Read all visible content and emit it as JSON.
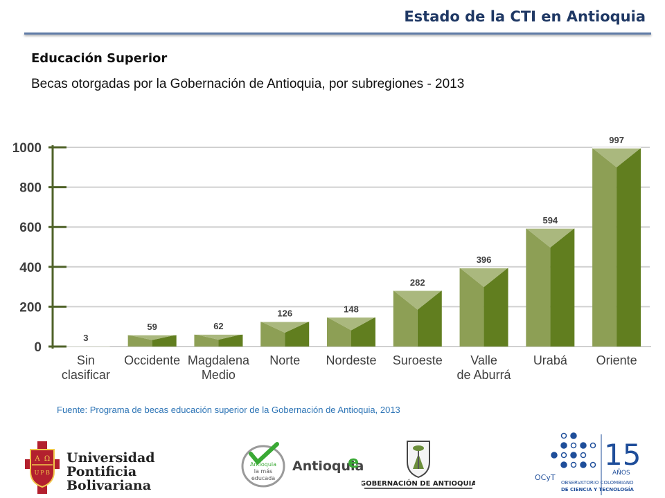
{
  "header": {
    "title": "Estado de la CTI en Antioquia",
    "subtitle": "Educación Superior",
    "caption": "Becas otorgadas por la Gobernación de Antioquia, por subregiones - 2013"
  },
  "chart_data": {
    "type": "bar",
    "title": "",
    "xlabel": "",
    "ylabel": "",
    "categories": [
      [
        "Sin",
        "clasificar"
      ],
      [
        "Occidente"
      ],
      [
        "Magdalena",
        "Medio"
      ],
      [
        "Norte"
      ],
      [
        "Nordeste"
      ],
      [
        "Suroeste"
      ],
      [
        "Valle",
        "de Aburrá"
      ],
      [
        "Urabá"
      ],
      [
        "Oriente"
      ]
    ],
    "values": [
      3,
      59,
      62,
      126,
      148,
      282,
      396,
      594,
      997
    ],
    "ylim": [
      0,
      1000
    ],
    "yticks": [
      0,
      200,
      400,
      600,
      800,
      1000
    ],
    "grid": true,
    "legend": "none",
    "colors": {
      "bar_front_left": "#8d9f55",
      "bar_front_right": "#617e1f",
      "bar_top": "#aab87e",
      "axis": "#4f6228",
      "grid": "#d0d0d0",
      "text": "#3f3f3f"
    }
  },
  "footer": {
    "source": "Fuente: Programa de becas educación superior de la Gobernación de Antioquia, 2013",
    "logos": {
      "upb": [
        "Universidad",
        "Pontificia",
        "Bolivariana"
      ],
      "upb_seal": [
        "A",
        "Ω",
        "U",
        "P",
        "B"
      ],
      "antioquia_badge": [
        "Antioquia",
        "la más",
        "educada"
      ],
      "antioquia_word": "Antioquia",
      "antioquia_e": "e",
      "gobernacion": "GOBERNACIÓN DE ANTIOQUIA",
      "ocyt_years": "15",
      "ocyt_anos": "AÑOS",
      "ocyt_short": "OCyT",
      "ocyt_name": [
        "OBSERVATORIO COLOMBIANO",
        "DE CIENCIA Y TECNOLOGÍA"
      ]
    }
  }
}
